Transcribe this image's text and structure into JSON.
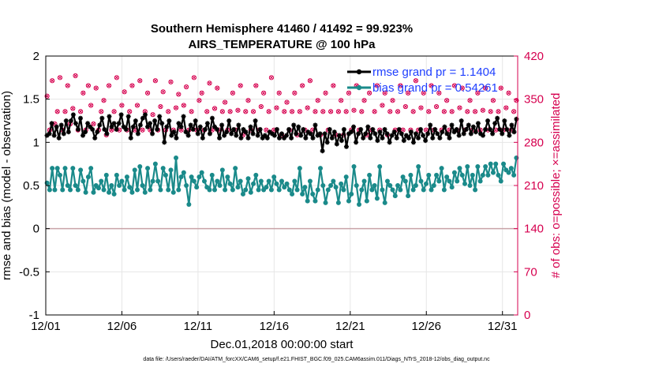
{
  "chart_data": {
    "type": "line",
    "title": "Southern Hemisphere 41460 / 41492 = 99.923%",
    "subtitle": "AIRS_TEMPERATURE @ 100 hPa",
    "xlabel": "Dec.01,2018 00:00:00 start",
    "ylabel": "rmse and bias (model - observation)",
    "ylabel_right": "# of obs: o=possible; ×=assimilated",
    "footer": "data file: /Users/raeder/DAI/ATM_forcXX/CAM6_setup/f.e21.FHIST_BGC.f09_025.CAM6assim.011/Diags_NTrS_2018-12/obs_diag_output.nc",
    "x_tick_labels": [
      "12/01",
      "12/06",
      "12/11",
      "12/16",
      "12/21",
      "12/26",
      "12/31"
    ],
    "x_tick_days": [
      1,
      6,
      11,
      16,
      21,
      26,
      31
    ],
    "xlim": [
      1,
      32
    ],
    "y_tick_labels": [
      "2",
      "1.5",
      "1",
      "0.5",
      "0",
      "-0.5",
      "-1"
    ],
    "ylim": [
      -1,
      2
    ],
    "y2_tick_labels": [
      "420",
      "350",
      "280",
      "210",
      "140",
      "70",
      "0"
    ],
    "y2lim": [
      0,
      420
    ],
    "colors": {
      "rmse": "#000000",
      "bias": "#1a8a8a",
      "obs": "#d6004f",
      "right_axis": "#d6004f",
      "legend_text": "#1f3fff",
      "zero_line": "#c8a3a8"
    },
    "series": [
      {
        "name": "rmse grand pr = 1.1404",
        "values": [
          1.08,
          1.1,
          1.22,
          1.08,
          1.18,
          1.05,
          1.2,
          1.1,
          1.25,
          1.12,
          1.25,
          1.32,
          1.22,
          1.15,
          1.28,
          1.08,
          1.12,
          1.22,
          1.18,
          1.15,
          1.05,
          1.12,
          1.2,
          1.28,
          1.15,
          1.1,
          1.3,
          1.18,
          1.22,
          1.15,
          1.22,
          1.32,
          1.18,
          1.15,
          1.3,
          1.05,
          1.18,
          1.25,
          1.1,
          1.2,
          1.28,
          1.32,
          1.18,
          1.22,
          1.1,
          1.25,
          1.15,
          1.3,
          1.22,
          1.0,
          1.18,
          1.25,
          1.08,
          1.12,
          1.05,
          1.22,
          1.18,
          1.3,
          1.12,
          1.08,
          1.2,
          1.15,
          1.25,
          1.1,
          1.18,
          1.05,
          1.15,
          1.22,
          1.1,
          1.28,
          1.18,
          1.15,
          1.05,
          1.2,
          1.08,
          1.12,
          1.25,
          1.1,
          1.15,
          1.08,
          1.2,
          1.05,
          1.15,
          1.12,
          1.05,
          1.18,
          1.1,
          1.25,
          1.08,
          1.15,
          1.05,
          1.08,
          1.05,
          1.12,
          1.1,
          1.08,
          1.15,
          1.05,
          1.1,
          1.05,
          1.08,
          1.15,
          1.05,
          1.2,
          1.1,
          1.18,
          1.08,
          1.15,
          1.05,
          1.12,
          1.1,
          1.05,
          1.2,
          1.08,
          1.1,
          0.9,
          1.1,
          1.0,
          1.15,
          1.05,
          1.12,
          0.98,
          1.08,
          1.02,
          1.15,
          0.95,
          1.1,
          1.12,
          1.18,
          1.0,
          1.1,
          1.15,
          1.05,
          1.1,
          1.18,
          1.05,
          1.15,
          1.1,
          1.02,
          1.12,
          1.05,
          1.15,
          1.1,
          1.0,
          1.08,
          1.12,
          1.05,
          1.15,
          1.1,
          1.02,
          1.08,
          1.05,
          1.12,
          1.0,
          1.1,
          1.05,
          1.15,
          1.08,
          1.02,
          1.1,
          1.2,
          1.05,
          1.15,
          1.1,
          1.05,
          1.12,
          1.18,
          1.1,
          1.05,
          1.2,
          1.12,
          1.15,
          1.08,
          1.25,
          1.1,
          1.15,
          1.2,
          1.1,
          1.18,
          1.12,
          1.22,
          1.1,
          1.08,
          1.15,
          1.25,
          1.15,
          1.1,
          1.22,
          1.28,
          1.15,
          1.1,
          1.25,
          1.15,
          1.08,
          1.2,
          1.12,
          1.27
        ]
      },
      {
        "name": "bias grand pr = 0.54261",
        "values": [
          0.53,
          0.45,
          0.7,
          0.45,
          0.7,
          0.62,
          0.45,
          0.7,
          0.5,
          0.45,
          0.7,
          0.5,
          0.45,
          0.68,
          0.55,
          0.42,
          0.6,
          0.7,
          0.42,
          0.5,
          0.47,
          0.55,
          0.45,
          0.62,
          0.42,
          0.5,
          0.4,
          0.62,
          0.5,
          0.55,
          0.45,
          0.6,
          0.48,
          0.42,
          0.68,
          0.45,
          0.72,
          0.5,
          0.42,
          0.7,
          0.45,
          0.55,
          0.75,
          0.55,
          0.45,
          0.7,
          0.62,
          0.45,
          0.68,
          0.42,
          0.82,
          0.45,
          0.6,
          0.65,
          0.5,
          0.28,
          0.6,
          0.55,
          0.48,
          0.6,
          0.65,
          0.55,
          0.48,
          0.45,
          0.62,
          0.45,
          0.55,
          0.5,
          0.68,
          0.45,
          0.6,
          0.52,
          0.45,
          0.7,
          0.48,
          0.55,
          0.4,
          0.45,
          0.58,
          0.42,
          0.52,
          0.62,
          0.45,
          0.55,
          0.45,
          0.48,
          0.55,
          0.45,
          0.6,
          0.52,
          0.45,
          0.55,
          0.48,
          0.52,
          0.45,
          0.4,
          0.55,
          0.45,
          0.7,
          0.4,
          0.48,
          0.32,
          0.55,
          0.4,
          0.32,
          0.45,
          0.7,
          0.5,
          0.3,
          0.45,
          0.5,
          0.55,
          0.48,
          0.3,
          0.52,
          0.45,
          0.6,
          0.32,
          0.4,
          0.72,
          0.5,
          0.28,
          0.45,
          0.55,
          0.32,
          0.62,
          0.45,
          0.5,
          0.35,
          0.72,
          0.45,
          0.3,
          0.55,
          0.5,
          0.45,
          0.38,
          0.5,
          0.45,
          0.6,
          0.55,
          0.38,
          0.62,
          0.45,
          0.5,
          0.72,
          0.55,
          0.45,
          0.52,
          0.62,
          0.45,
          0.5,
          0.62,
          0.55,
          0.7,
          0.45,
          0.6,
          0.55,
          0.48,
          0.65,
          0.55,
          0.7,
          0.62,
          0.52,
          0.72,
          0.5,
          0.62,
          0.45,
          0.72,
          0.55,
          0.62,
          0.72,
          0.62,
          0.75,
          0.65,
          0.75,
          0.62,
          0.55,
          0.75,
          0.68,
          0.65,
          0.7,
          0.62,
          0.82
        ]
      }
    ],
    "obs_possible": [
      355,
      300,
      380,
      310,
      330,
      385,
      300,
      330,
      372,
      310,
      335,
      388,
      300,
      330,
      360,
      300,
      372,
      340,
      310,
      368,
      300,
      330,
      348,
      292,
      372,
      300,
      330,
      385,
      300,
      340,
      362,
      300,
      330,
      372,
      300,
      340,
      380,
      300,
      330,
      360,
      300,
      325,
      380,
      300,
      338,
      362,
      300,
      330,
      378,
      300,
      336,
      358,
      300,
      340,
      370,
      300,
      330,
      385,
      300,
      348,
      360,
      300,
      330,
      376,
      300,
      335,
      368,
      300,
      330,
      345,
      300,
      330,
      360,
      300,
      332,
      372,
      292,
      330,
      348,
      300,
      330,
      372,
      300,
      338,
      360,
      300,
      330,
      385,
      300,
      336,
      360,
      292,
      330,
      345,
      300,
      330,
      360,
      292,
      330,
      372,
      300,
      336,
      380,
      300,
      330,
      348,
      292,
      330,
      360,
      300,
      330,
      372,
      292,
      330,
      348,
      292,
      330,
      360,
      300,
      332,
      372,
      300,
      330,
      348,
      292,
      360,
      300,
      330,
      372,
      300,
      340,
      360,
      292,
      330,
      348,
      300,
      330,
      372,
      300,
      338,
      360,
      300,
      330,
      380,
      300,
      336,
      360,
      300,
      330,
      372,
      300,
      338,
      360,
      300,
      330,
      348,
      300,
      330,
      372,
      300,
      336,
      368,
      300,
      330,
      348,
      300,
      330,
      360,
      300,
      332,
      368,
      300,
      330,
      348,
      300,
      330,
      368,
      300,
      336,
      360,
      300,
      330,
      348
    ],
    "obs_assimilated": [
      355,
      300,
      380,
      310,
      330,
      385,
      300,
      330,
      372,
      310,
      335,
      388,
      300,
      330,
      360,
      300,
      372,
      340,
      310,
      368,
      300,
      330,
      348,
      292,
      372,
      300,
      330,
      385,
      300,
      340,
      362,
      300,
      330,
      372,
      300,
      340,
      380,
      300,
      330,
      360,
      300,
      325,
      380,
      300,
      338,
      362,
      300,
      330,
      378,
      300,
      336,
      358,
      300,
      340,
      370,
      300,
      330,
      385,
      300,
      348,
      360,
      300,
      330,
      376,
      300,
      335,
      368,
      300,
      330,
      345,
      300,
      330,
      360,
      300,
      332,
      372,
      292,
      330,
      348,
      300,
      330,
      372,
      300,
      338,
      360,
      300,
      330,
      385,
      300,
      336,
      360,
      292,
      330,
      345,
      300,
      330,
      360,
      292,
      330,
      372,
      300,
      336,
      380,
      300,
      330,
      348,
      292,
      330,
      360,
      300,
      330,
      372,
      292,
      330,
      348,
      292,
      330,
      360,
      300,
      332,
      372,
      300,
      330,
      348,
      292,
      360,
      300,
      330,
      372,
      300,
      340,
      360,
      292,
      330,
      348,
      300,
      330,
      372,
      300,
      338,
      360,
      300,
      330,
      380,
      300,
      336,
      360,
      300,
      330,
      372,
      300,
      338,
      360,
      300,
      330,
      348,
      300,
      330,
      372,
      300,
      336,
      368,
      300,
      330,
      348,
      300,
      330,
      360,
      300,
      332,
      368,
      300,
      330,
      348,
      300,
      330,
      368,
      300,
      336,
      360,
      300,
      330,
      348
    ]
  }
}
